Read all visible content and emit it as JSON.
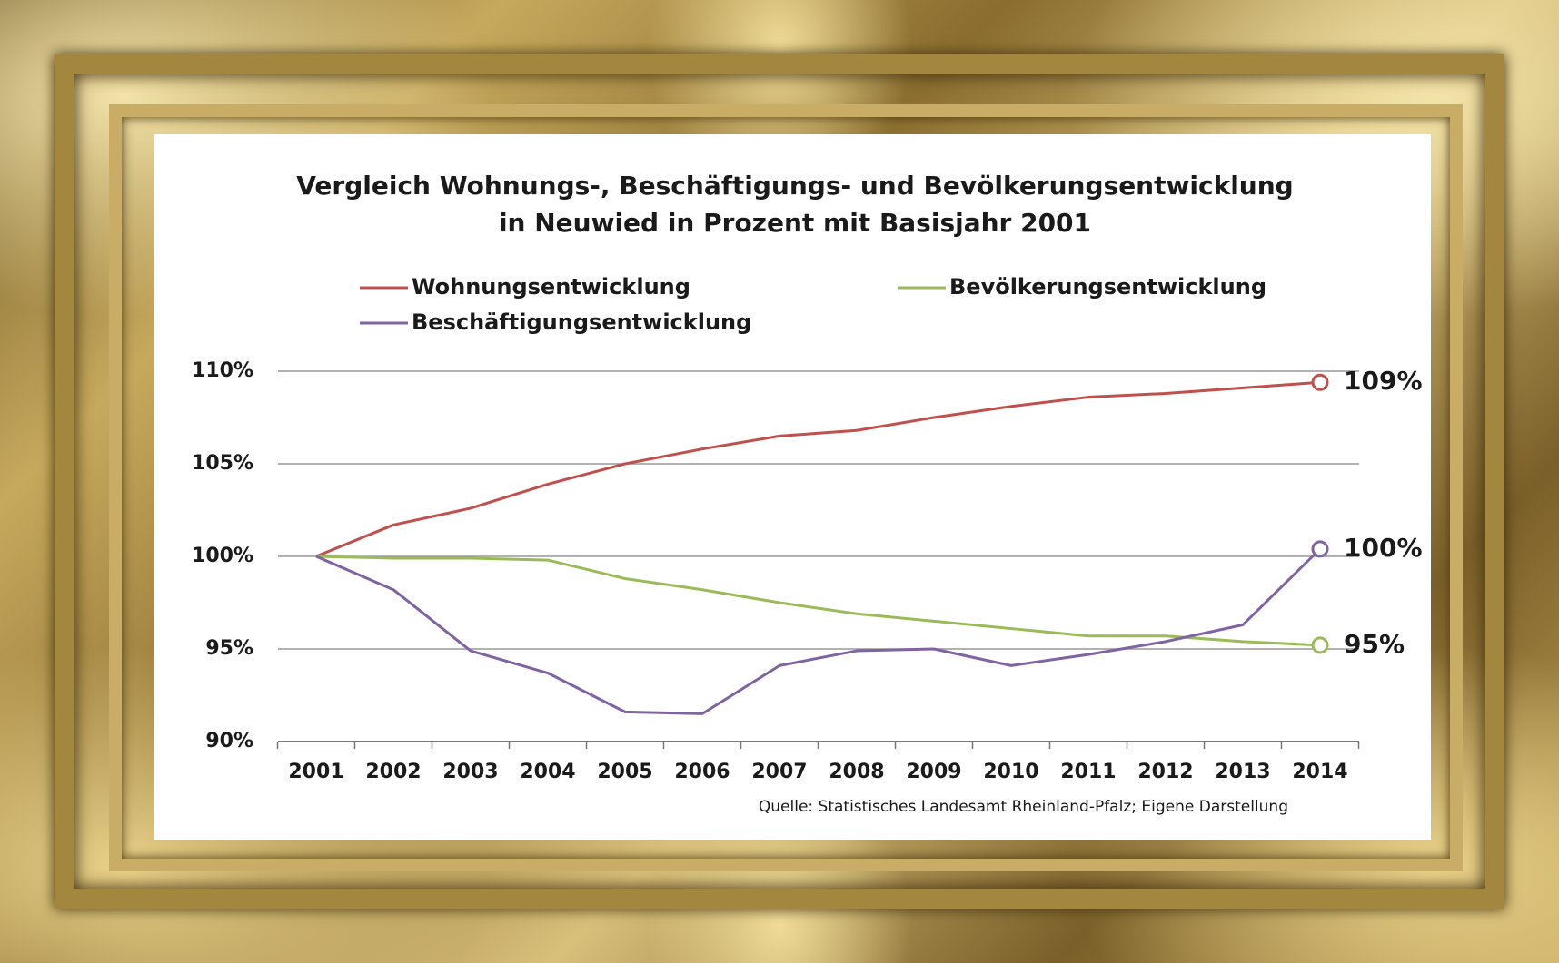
{
  "chart_data": {
    "type": "line",
    "title": "Vergleich Wohnungs-, Beschäftigungs- und Bevölkerungsentwicklung",
    "subtitle": "in Neuwied in Prozent mit Basisjahr 2001",
    "source": "Quelle: Statistisches Landesamt Rheinland-Pfalz; Eigene Darstellung",
    "categories": [
      "2001",
      "2002",
      "2003",
      "2004",
      "2005",
      "2006",
      "2007",
      "2008",
      "2009",
      "2010",
      "2011",
      "2012",
      "2013",
      "2014"
    ],
    "ylim": [
      90,
      110
    ],
    "yticks": [
      {
        "value": 90,
        "label": "90%"
      },
      {
        "value": 95,
        "label": "95%"
      },
      {
        "value": 100,
        "label": "100%"
      },
      {
        "value": 105,
        "label": "105%"
      },
      {
        "value": 110,
        "label": "110%"
      }
    ],
    "grid": true,
    "series": [
      {
        "name": "Wohnungsentwicklung",
        "color": "#c0504d",
        "values": [
          100,
          101.7,
          102.6,
          103.9,
          105.0,
          105.8,
          106.5,
          106.8,
          107.5,
          108.1,
          108.6,
          108.8,
          109.1,
          109.4
        ],
        "value_labels": [
          null,
          null,
          null,
          null,
          null,
          null,
          null,
          null,
          null,
          null,
          null,
          null,
          null,
          "109%"
        ]
      },
      {
        "name": "Bevölkerungsentwicklung",
        "color": "#9bbb59",
        "values": [
          100,
          99.9,
          99.9,
          99.8,
          98.8,
          98.2,
          97.5,
          96.9,
          96.5,
          96.1,
          95.7,
          95.7,
          95.4,
          95.2
        ],
        "value_labels": [
          null,
          null,
          null,
          null,
          null,
          null,
          null,
          null,
          null,
          null,
          null,
          null,
          null,
          "95%"
        ]
      },
      {
        "name": "Beschäftigungsentwicklung",
        "color": "#8064a2",
        "values": [
          100,
          98.2,
          94.9,
          93.7,
          91.6,
          91.5,
          94.1,
          94.9,
          95.0,
          94.1,
          94.7,
          95.4,
          96.3,
          100.4
        ],
        "value_labels": [
          null,
          null,
          null,
          null,
          null,
          null,
          null,
          null,
          null,
          null,
          null,
          null,
          null,
          "100%"
        ]
      }
    ]
  }
}
